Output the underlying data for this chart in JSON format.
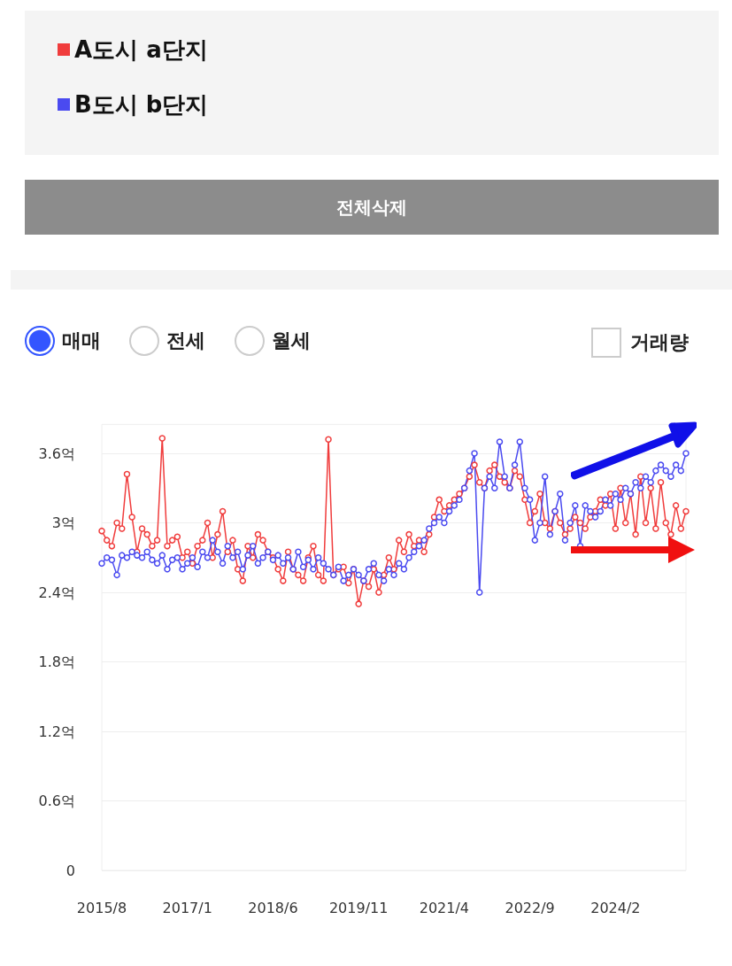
{
  "chart_data": {
    "type": "line",
    "categories": [
      "2015/8",
      null,
      null,
      null,
      null,
      null,
      null,
      null,
      null,
      null,
      null,
      null,
      null,
      null,
      null,
      null,
      null,
      "2017/1",
      null,
      null,
      null,
      null,
      null,
      null,
      null,
      null,
      null,
      null,
      null,
      null,
      null,
      null,
      null,
      null,
      "2018/6",
      null,
      null,
      null,
      null,
      null,
      null,
      null,
      null,
      null,
      null,
      null,
      null,
      null,
      null,
      null,
      null,
      "2019/11",
      null,
      null,
      null,
      null,
      null,
      null,
      null,
      null,
      null,
      null,
      null,
      null,
      null,
      null,
      null,
      null,
      "2021/4",
      null,
      null,
      null,
      null,
      null,
      null,
      null,
      null,
      null,
      null,
      null,
      null,
      null,
      null,
      null,
      null,
      "2022/9",
      null,
      null,
      null,
      null,
      null,
      null,
      null,
      null,
      null,
      null,
      null,
      null,
      null,
      null,
      null,
      null,
      "2024/2",
      null,
      null,
      null,
      null,
      null,
      null,
      null,
      null,
      null,
      null,
      null,
      null,
      null,
      null
    ],
    "series": [
      {
        "name": "A도시 a단지",
        "color": "#f03c3c",
        "values": [
          2.93,
          2.85,
          2.8,
          3.0,
          2.95,
          3.42,
          3.05,
          2.75,
          2.95,
          2.9,
          2.8,
          2.85,
          3.73,
          2.8,
          2.85,
          2.88,
          2.7,
          2.75,
          2.65,
          2.8,
          2.85,
          3.0,
          2.7,
          2.9,
          3.1,
          2.75,
          2.85,
          2.6,
          2.5,
          2.8,
          2.7,
          2.9,
          2.85,
          2.75,
          2.7,
          2.6,
          2.5,
          2.75,
          2.6,
          2.55,
          2.5,
          2.7,
          2.8,
          2.55,
          2.5,
          3.72,
          2.55,
          2.6,
          2.62,
          2.48,
          2.6,
          2.3,
          2.5,
          2.45,
          2.6,
          2.4,
          2.55,
          2.7,
          2.6,
          2.85,
          2.75,
          2.9,
          2.8,
          2.85,
          2.75,
          2.9,
          3.05,
          3.2,
          3.1,
          3.15,
          3.2,
          3.25,
          3.3,
          3.4,
          3.5,
          3.35,
          3.3,
          3.45,
          3.5,
          3.4,
          3.35,
          3.3,
          3.45,
          3.4,
          3.2,
          3.0,
          3.1,
          3.25,
          3.0,
          2.95,
          3.1,
          3.0,
          2.9,
          2.95,
          3.05,
          3.0,
          2.95,
          3.05,
          3.1,
          3.2,
          3.15,
          3.25,
          2.95,
          3.3,
          3.0,
          3.25,
          2.9,
          3.4,
          3.0,
          3.3,
          2.95,
          3.35,
          3.0,
          2.9,
          3.15,
          2.95,
          3.1
        ]
      },
      {
        "name": "B도시 b단지",
        "color": "#4a4af0",
        "values": [
          2.65,
          2.7,
          2.68,
          2.55,
          2.72,
          2.7,
          2.75,
          2.72,
          2.7,
          2.75,
          2.68,
          2.65,
          2.72,
          2.6,
          2.68,
          2.7,
          2.6,
          2.65,
          2.7,
          2.62,
          2.75,
          2.7,
          2.85,
          2.75,
          2.65,
          2.8,
          2.7,
          2.75,
          2.6,
          2.72,
          2.8,
          2.65,
          2.7,
          2.75,
          2.68,
          2.72,
          2.65,
          2.7,
          2.6,
          2.75,
          2.62,
          2.68,
          2.6,
          2.7,
          2.65,
          2.6,
          2.55,
          2.62,
          2.5,
          2.55,
          2.6,
          2.55,
          2.5,
          2.6,
          2.65,
          2.55,
          2.5,
          2.6,
          2.55,
          2.65,
          2.6,
          2.7,
          2.75,
          2.8,
          2.85,
          2.95,
          3.0,
          3.05,
          3.0,
          3.1,
          3.15,
          3.2,
          3.3,
          3.45,
          3.6,
          2.4,
          3.3,
          3.4,
          3.3,
          3.7,
          3.4,
          3.3,
          3.5,
          3.7,
          3.3,
          3.2,
          2.85,
          3.0,
          3.4,
          2.9,
          3.1,
          3.25,
          2.85,
          3.0,
          3.15,
          2.8,
          3.15,
          3.1,
          3.05,
          3.1,
          3.2,
          3.15,
          3.25,
          3.2,
          3.3,
          3.25,
          3.35,
          3.3,
          3.4,
          3.35,
          3.45,
          3.5,
          3.45,
          3.4,
          3.5,
          3.45,
          3.6
        ]
      }
    ],
    "ylim": [
      0,
      3.85
    ],
    "yticks": [
      0,
      {
        "value": 0.6,
        "label": "0.6억"
      },
      {
        "value": 1.2,
        "label": "1.2억"
      },
      {
        "value": 1.8,
        "label": "1.8억"
      },
      {
        "value": 2.4,
        "label": "2.4억"
      },
      {
        "value": 3,
        "label": "3억"
      },
      {
        "value": 3.6,
        "label": "3.6억"
      }
    ],
    "grid": "y",
    "legend": "top left",
    "marker": "circle",
    "line_style": "solid",
    "annotations": [
      "전체삭제",
      "매매",
      "전세",
      "월세",
      "거래량"
    ]
  }
}
